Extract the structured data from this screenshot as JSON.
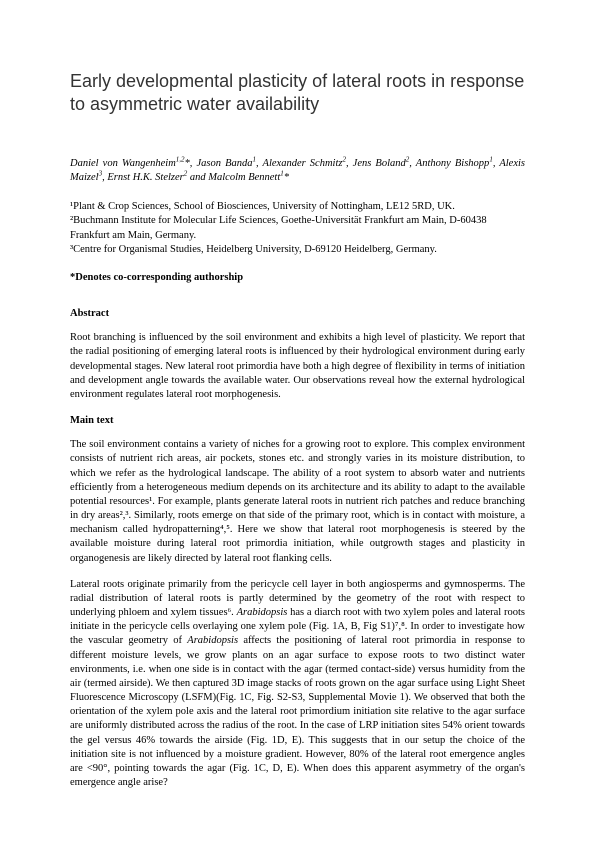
{
  "title": "Early developmental plasticity of lateral roots in response to asymmetric water availability",
  "authors_html": "Daniel von Wangenheim<sup>1,2</sup>*, Jason Banda<sup>1</sup>, Alexander Schmitz<sup>2</sup>, Jens Boland<sup>2</sup>, Anthony Bishopp<sup>1</sup>, Alexis Maizel<sup>3</sup>, Ernst H.K. Stelzer<sup>2</sup> and Malcolm Bennett<sup>1</sup>*",
  "affiliations": [
    "¹Plant & Crop Sciences, School of Biosciences, University of Nottingham, LE12 5RD, UK.",
    "²Buchmann Institute for Molecular Life Sciences, Goethe-Universität Frankfurt am Main, D-60438 Frankfurt am Main, Germany.",
    "³Centre for Organismal Studies, Heidelberg University, D-69120 Heidelberg, Germany."
  ],
  "corresponding": "*Denotes co-corresponding authorship",
  "abstract_head": "Abstract",
  "abstract_body": "Root branching is influenced by the soil environment and exhibits a high level of plasticity. We report that the radial positioning of emerging lateral roots is influenced by their hydrological environment during early developmental stages. New lateral root primordia have both a high degree of flexibility in terms of initiation and development angle towards the available water. Our observations reveal how the external hydrological environment regulates lateral root morphogenesis.",
  "main_head": "Main text",
  "main_p1": "The soil environment contains a variety of niches for a growing root to explore. This complex environment consists of nutrient rich areas, air pockets, stones etc. and strongly varies in its moisture distribution, to which we refer as the hydrological landscape. The ability of a root system to absorb water and nutrients efficiently from a heterogeneous medium depends on its architecture and its ability to adapt to the available potential resources¹. For example, plants generate lateral roots in nutrient rich patches and reduce branching in dry areas²,³. Similarly, roots emerge on that side of the primary root, which is in contact with moisture, a mechanism called hydropatterning⁴,⁵. Here we show that lateral root morphogenesis is steered by the available moisture during lateral root primordia initiation, while outgrowth stages and plasticity in organogenesis are likely directed by lateral root flanking cells.",
  "main_p2_html": "Lateral roots originate primarily from the pericycle cell layer in both angiosperms and gymnosperms. The radial distribution of lateral roots is partly determined by the geometry of the root with respect to underlying phloem and xylem tissues⁶. <i>Arabidopsis</i> has a diarch root with two xylem poles and lateral roots initiate in the pericycle cells overlaying one xylem pole (Fig. 1A, B, Fig S1)⁷,⁸. In order to investigate how the vascular geometry of <i>Arabidopsis</i> affects the positioning of lateral root primordia in response to different moisture levels, we grow plants on an agar surface to expose roots to two distinct water environments, i.e. when one side is in contact with the agar (termed contact-side) versus humidity from the air (termed airside). We then captured 3D image stacks of roots grown on the agar surface using Light Sheet Fluorescence Microscopy (LSFM)(Fig. 1C, Fig. S2-S3, Supplemental Movie 1). We observed that both the orientation of the xylem pole axis and the lateral root primordium initiation site relative to the agar surface are uniformly distributed across the radius of the root. In the case of LRP initiation sites 54% orient towards the gel versus 46% towards the airside (Fig. 1D, E). This suggests that in our setup the choice of the initiation site is not influenced by a moisture gradient. However, 80% of the lateral root emergence angles are <90°, pointing towards the agar (Fig. 1C, D, E). When does this apparent asymmetry of the organ's emergence angle arise?"
}
